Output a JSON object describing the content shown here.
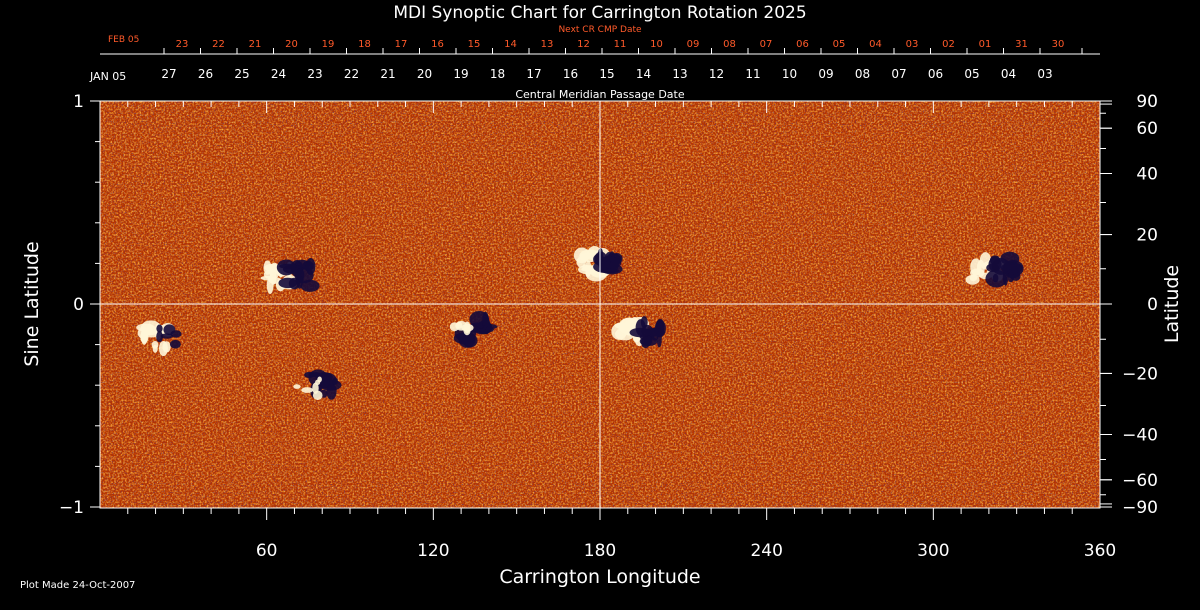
{
  "chart_data": {
    "type": "heatmap",
    "title": "MDI Synoptic Chart for Carrington Rotation 2025",
    "xlabel": "Carrington Longitude",
    "ylabel_left": "Sine Latitude",
    "ylabel_right": "Latitude",
    "xlim": [
      0,
      360
    ],
    "ylim": [
      -1,
      1
    ],
    "x_ticks": [
      60,
      120,
      180,
      240,
      300,
      360
    ],
    "y_ticks_left": [
      {
        "value": 1,
        "label": "1"
      },
      {
        "value": 0,
        "label": "0"
      },
      {
        "value": -1,
        "label": "−1"
      }
    ],
    "y_ticks_right": [
      90,
      60,
      40,
      20,
      0,
      -20,
      -40,
      -60,
      -90
    ],
    "y_ticks_right_labels": [
      "90",
      "60",
      "40",
      "20",
      "0",
      "−20",
      "−40",
      "−60",
      "−90"
    ],
    "next_cr_label": "Next CR CMP Date",
    "next_cr_start": "FEB 05",
    "next_cr_dates": [
      "23",
      "22",
      "21",
      "20",
      "19",
      "18",
      "17",
      "16",
      "15",
      "14",
      "13",
      "12",
      "11",
      "10",
      "09",
      "08",
      "07",
      "06",
      "05",
      "04",
      "03",
      "02",
      "01",
      "31",
      "30"
    ],
    "cmp_label": "Central Meridian Passage Date",
    "cmp_start": "JAN 05",
    "cmp_dates": [
      "27",
      "26",
      "25",
      "24",
      "23",
      "22",
      "21",
      "20",
      "19",
      "18",
      "17",
      "16",
      "15",
      "14",
      "13",
      "12",
      "11",
      "10",
      "09",
      "08",
      "07",
      "06",
      "05",
      "04",
      "03"
    ],
    "footer": "Plot Made 24-Oct-2007",
    "colors": {
      "background": "#000000",
      "field_base": "#c83c00",
      "positive": "#fff6d8",
      "negative": "#140a3a",
      "next_cr_text": "#ff5a2a",
      "axis": "#ffffff"
    },
    "active_regions": [
      {
        "lon": 180,
        "sinlat": 0.2,
        "polarity": "bipolar"
      },
      {
        "lon": 195,
        "sinlat": -0.14,
        "polarity": "bipolar"
      },
      {
        "lon": 20,
        "sinlat": -0.17,
        "polarity": "positive"
      },
      {
        "lon": 135,
        "sinlat": -0.13,
        "polarity": "negative"
      },
      {
        "lon": 80,
        "sinlat": -0.4,
        "polarity": "negative"
      },
      {
        "lon": 322,
        "sinlat": 0.17,
        "polarity": "bipolar"
      },
      {
        "lon": 68,
        "sinlat": 0.14,
        "polarity": "bipolar"
      }
    ]
  }
}
